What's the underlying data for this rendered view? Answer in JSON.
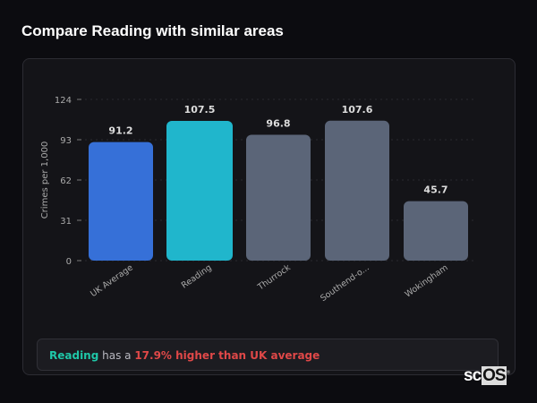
{
  "title": "Compare Reading with similar areas",
  "chart_data": {
    "type": "bar",
    "categories": [
      "UK Average",
      "Reading",
      "Thurrock",
      "Southend-o...",
      "Wokingham"
    ],
    "values": [
      91.2,
      107.5,
      96.8,
      107.6,
      45.7
    ],
    "value_labels": [
      "91.2",
      "107.5",
      "96.8",
      "107.6",
      "45.7"
    ],
    "colors": [
      "#3670d8",
      "#20b6cc",
      "#5b6578",
      "#5b6578",
      "#5b6578"
    ],
    "ylabel": "Crimes per 1,000",
    "xlabel": "",
    "yticks": [
      0,
      31,
      62,
      93,
      124
    ],
    "ylim": [
      0,
      124
    ],
    "grid": true
  },
  "summary": {
    "area": "Reading",
    "middle": " has a ",
    "comparison": "17.9% higher than UK average"
  },
  "logo": {
    "text_plain": "sc",
    "text_boxed": "OS",
    "mark": "®"
  }
}
